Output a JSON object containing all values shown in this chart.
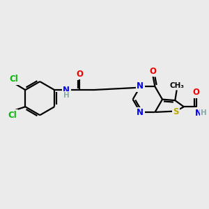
{
  "bg_color": "#ebebeb",
  "bond_color": "#000000",
  "bond_width": 1.6,
  "atom_colors": {
    "C": "#000000",
    "N": "#0000ee",
    "O": "#ee0000",
    "S": "#bbaa00",
    "Cl": "#00bb00",
    "H": "#88aaaa"
  },
  "font_size": 8.5,
  "small_font": 7.5
}
